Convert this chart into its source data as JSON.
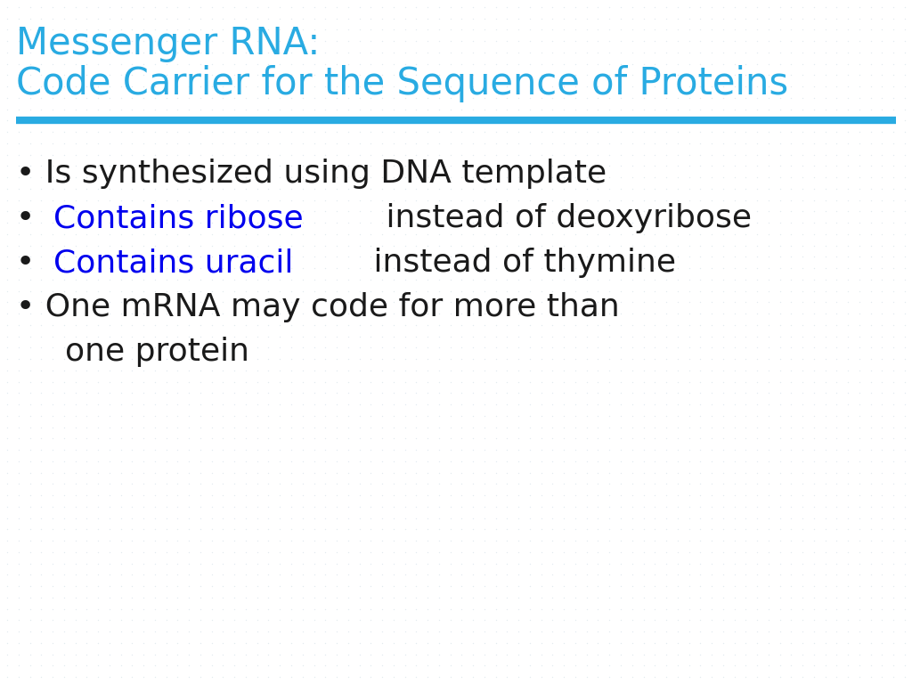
{
  "title_line1": "Messenger RNA:",
  "title_line2": "Code Carrier for the Sequence of Proteins",
  "title_color": "#29ABE2",
  "background_color": "#FFFFFF",
  "dot_color": "#C8D8E0",
  "separator_color": "#29ABE2",
  "bullet_items": [
    {
      "parts": [
        {
          "text": "• Is synthesized using DNA template",
          "color": "#1a1a1a"
        }
      ]
    },
    {
      "parts": [
        {
          "text": "•",
          "color": "#1a1a1a"
        },
        {
          "text": "Contains ribose",
          "color": "#0000EE"
        },
        {
          "text": " instead of deoxyribose",
          "color": "#1a1a1a"
        }
      ]
    },
    {
      "parts": [
        {
          "text": "•",
          "color": "#1a1a1a"
        },
        {
          "text": "Contains uracil",
          "color": "#0000EE"
        },
        {
          "text": " instead of thymine",
          "color": "#1a1a1a"
        }
      ]
    },
    {
      "parts": [
        {
          "text": "• One mRNA may code for more than",
          "color": "#1a1a1a"
        }
      ],
      "continuation": "  one protein"
    }
  ],
  "title_fontsize": 30,
  "bullet_fontsize": 26,
  "figsize": [
    10.24,
    7.68
  ],
  "dpi": 100
}
